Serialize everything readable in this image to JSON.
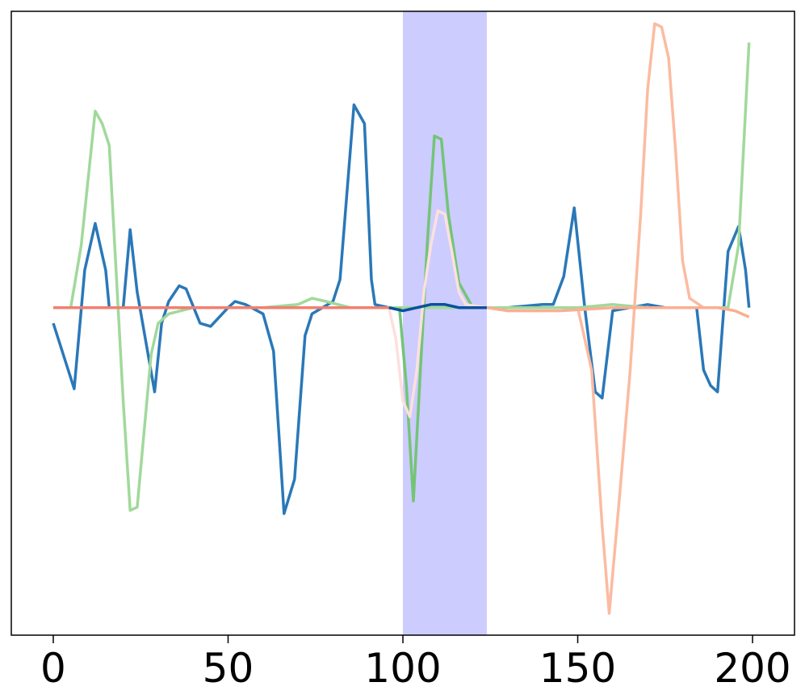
{
  "chart_data": {
    "type": "line",
    "title": "",
    "xlabel": "",
    "ylabel": "",
    "xlim": [
      -12,
      212
    ],
    "ylim": [
      -1.05,
      0.95
    ],
    "x_ticks": [
      0,
      50,
      100,
      150,
      200
    ],
    "x_tick_labels": [
      "0",
      "50",
      "100",
      "150",
      "200"
    ],
    "y_ticks": [],
    "grid": false,
    "legend": "none",
    "highlight_span": {
      "x": [
        100,
        124
      ],
      "color": "#ccccff"
    },
    "series": [
      {
        "color": "#2a78b8",
        "points": [
          [
            0,
            -0.05
          ],
          [
            6,
            -0.26
          ],
          [
            9,
            0.12
          ],
          [
            12,
            0.27
          ],
          [
            15,
            0.12
          ],
          [
            16,
            0.0
          ],
          [
            20,
            0.0
          ],
          [
            22,
            0.25
          ],
          [
            24,
            0.05
          ],
          [
            29,
            -0.27
          ],
          [
            31,
            -0.05
          ],
          [
            33,
            0.02
          ],
          [
            36,
            0.07
          ],
          [
            38,
            0.06
          ],
          [
            42,
            -0.05
          ],
          [
            45,
            -0.06
          ],
          [
            50,
            0.0
          ],
          [
            52,
            0.02
          ],
          [
            55,
            0.01
          ],
          [
            60,
            -0.02
          ],
          [
            63,
            -0.14
          ],
          [
            66,
            -0.66
          ],
          [
            69,
            -0.55
          ],
          [
            72,
            -0.09
          ],
          [
            74,
            -0.02
          ],
          [
            80,
            0.02
          ],
          [
            82,
            0.09
          ],
          [
            86,
            0.65
          ],
          [
            89,
            0.59
          ],
          [
            91,
            0.09
          ],
          [
            92,
            0.01
          ],
          [
            96,
            0.0
          ],
          [
            100,
            0.0
          ],
          [
            104,
            0.0
          ],
          [
            120,
            0.0
          ],
          [
            130,
            0.0
          ],
          [
            140,
            0.01
          ],
          [
            143,
            0.01
          ],
          [
            146,
            0.1
          ],
          [
            149,
            0.32
          ],
          [
            152,
            0.0
          ],
          [
            155,
            -0.27
          ],
          [
            157,
            -0.29
          ],
          [
            160,
            -0.01
          ],
          [
            165,
            0.0
          ],
          [
            170,
            0.01
          ],
          [
            175,
            0.0
          ],
          [
            180,
            0.0
          ],
          [
            184,
            0.0
          ],
          [
            186,
            -0.2
          ],
          [
            188,
            -0.25
          ],
          [
            190,
            -0.27
          ],
          [
            193,
            0.18
          ],
          [
            196,
            0.26
          ],
          [
            198,
            0.12
          ],
          [
            199,
            0.0
          ]
        ]
      },
      {
        "color": "#a1d99b",
        "points": [
          [
            0,
            0.0
          ],
          [
            5,
            0.0
          ],
          [
            8,
            0.2
          ],
          [
            12,
            0.63
          ],
          [
            14,
            0.59
          ],
          [
            16,
            0.52
          ],
          [
            20,
            -0.3
          ],
          [
            22,
            -0.65
          ],
          [
            24,
            -0.64
          ],
          [
            28,
            -0.15
          ],
          [
            30,
            -0.05
          ],
          [
            33,
            -0.02
          ],
          [
            40,
            0.0
          ],
          [
            50,
            0.0
          ],
          [
            60,
            0.0
          ],
          [
            70,
            0.01
          ],
          [
            74,
            0.03
          ],
          [
            78,
            0.02
          ],
          [
            85,
            0.0
          ],
          [
            95,
            0.0
          ],
          [
            99,
            0.0
          ],
          [
            103,
            0.0
          ],
          [
            110,
            0.0
          ],
          [
            120,
            0.0
          ],
          [
            130,
            0.0
          ],
          [
            140,
            0.0
          ],
          [
            150,
            0.0
          ],
          [
            160,
            0.01
          ],
          [
            170,
            0.0
          ],
          [
            180,
            0.0
          ],
          [
            186,
            0.0
          ],
          [
            190,
            0.0
          ],
          [
            193,
            0.0
          ],
          [
            196,
            0.2
          ],
          [
            199,
            0.85
          ]
        ]
      },
      {
        "color": "#74c476",
        "points": [
          [
            99,
            0.0
          ],
          [
            101,
            -0.25
          ],
          [
            103,
            -0.62
          ],
          [
            105,
            -0.2
          ],
          [
            107,
            0.21
          ],
          [
            109,
            0.55
          ],
          [
            111,
            0.54
          ],
          [
            113,
            0.3
          ],
          [
            116,
            0.08
          ],
          [
            120,
            0.0
          ],
          [
            124,
            0.0
          ]
        ]
      },
      {
        "color": "#fde0dd",
        "points": [
          [
            96,
            0.0
          ],
          [
            98,
            -0.1
          ],
          [
            100,
            -0.3
          ],
          [
            102,
            -0.35
          ],
          [
            104,
            -0.2
          ],
          [
            106,
            0.05
          ],
          [
            108,
            0.2
          ],
          [
            110,
            0.31
          ],
          [
            112,
            0.3
          ],
          [
            114,
            0.18
          ],
          [
            116,
            0.05
          ],
          [
            118,
            0.01
          ],
          [
            124,
            0.0
          ]
        ]
      },
      {
        "color": "#fcbba1",
        "points": [
          [
            150,
            0.0
          ],
          [
            154,
            -0.2
          ],
          [
            157,
            -0.7
          ],
          [
            159,
            -0.98
          ],
          [
            162,
            -0.6
          ],
          [
            165,
            -0.2
          ],
          [
            168,
            0.3
          ],
          [
            170,
            0.7
          ],
          [
            172,
            0.91
          ],
          [
            174,
            0.9
          ],
          [
            176,
            0.8
          ],
          [
            178,
            0.5
          ],
          [
            180,
            0.15
          ],
          [
            182,
            0.03
          ],
          [
            186,
            0.0
          ]
        ]
      },
      {
        "color": "#f08070",
        "points": [
          [
            0,
            0.0
          ],
          [
            8,
            0.0
          ],
          [
            15,
            0.0
          ],
          [
            20,
            0.0
          ],
          [
            30,
            0.0
          ],
          [
            40,
            0.0
          ],
          [
            60,
            0.0
          ],
          [
            80,
            0.0
          ],
          [
            90,
            0.0
          ],
          [
            96,
            0.0
          ]
        ]
      },
      {
        "color": "#fcae91",
        "points": [
          [
            124,
            0.0
          ],
          [
            130,
            -0.01
          ],
          [
            145,
            -0.01
          ],
          [
            160,
            0.0
          ],
          [
            170,
            0.0
          ],
          [
            180,
            0.0
          ],
          [
            190,
            0.0
          ],
          [
            195,
            -0.01
          ],
          [
            199,
            -0.03
          ]
        ]
      },
      {
        "color": "#08519c",
        "points": [
          [
            96,
            0.0
          ],
          [
            100,
            -0.01
          ],
          [
            104,
            0.0
          ],
          [
            108,
            0.01
          ],
          [
            112,
            0.01
          ],
          [
            116,
            0.0
          ],
          [
            120,
            0.0
          ],
          [
            124,
            0.0
          ]
        ]
      }
    ]
  }
}
